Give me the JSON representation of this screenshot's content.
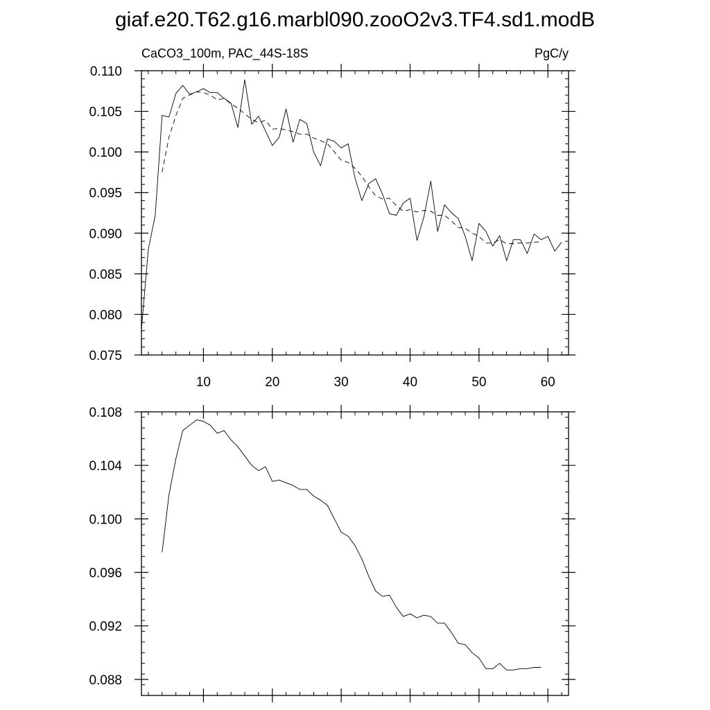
{
  "title": "giaf.e20.T62.g16.marbl090.zooO2v3.TF4.sd1.modB",
  "chart_data": [
    {
      "type": "line",
      "subtitle_left": "CaCO3_100m, PAC_44S-18S",
      "subtitle_right": "PgC/y",
      "xlim": [
        1,
        63
      ],
      "ylim": [
        0.075,
        0.11
      ],
      "x_ticks": [
        10,
        20,
        30,
        40,
        50,
        60
      ],
      "x_tick_labels": [
        "10",
        "20",
        "30",
        "40",
        "50",
        "60"
      ],
      "y_ticks": [
        0.075,
        0.08,
        0.085,
        0.09,
        0.095,
        0.1,
        0.105,
        0.11
      ],
      "y_tick_labels": [
        "0.075",
        "0.080",
        "0.085",
        "0.090",
        "0.095",
        "0.100",
        "0.105",
        "0.110"
      ],
      "series": [
        {
          "style": "solid",
          "x": [
            1,
            2,
            3,
            4,
            5,
            6,
            7,
            8,
            9,
            10,
            11,
            12,
            13,
            14,
            15,
            16,
            17,
            18,
            19,
            20,
            21,
            22,
            23,
            24,
            25,
            26,
            27,
            28,
            29,
            30,
            31,
            32,
            33,
            34,
            35,
            36,
            37,
            38,
            39,
            40,
            41,
            42,
            43,
            44,
            45,
            46,
            47,
            48,
            49,
            50,
            51,
            52,
            53,
            54,
            55,
            56,
            57,
            58,
            59,
            60,
            61,
            62
          ],
          "values": [
            0.0782,
            0.088,
            0.0922,
            0.1045,
            0.1043,
            0.1072,
            0.1082,
            0.1071,
            0.1074,
            0.1078,
            0.1073,
            0.1073,
            0.1066,
            0.106,
            0.103,
            0.1089,
            0.1034,
            0.1044,
            0.1026,
            0.1008,
            0.1018,
            0.1053,
            0.1012,
            0.104,
            0.1035,
            0.1,
            0.0983,
            0.1016,
            0.1013,
            0.1005,
            0.101,
            0.0968,
            0.094,
            0.0961,
            0.0967,
            0.0948,
            0.0924,
            0.0922,
            0.0937,
            0.0943,
            0.0891,
            0.092,
            0.0964,
            0.0902,
            0.0935,
            0.0925,
            0.0918,
            0.0896,
            0.0866,
            0.0912,
            0.0902,
            0.0884,
            0.0897,
            0.0866,
            0.0892,
            0.0892,
            0.0875,
            0.0899,
            0.0892,
            0.0896,
            0.0878,
            0.0889
          ]
        },
        {
          "style": "dashed",
          "x": [
            4,
            5,
            6,
            7,
            8,
            9,
            10,
            11,
            12,
            13,
            14,
            15,
            16,
            17,
            18,
            19,
            20,
            21,
            22,
            23,
            24,
            25,
            26,
            27,
            28,
            29,
            30,
            31,
            32,
            33,
            34,
            35,
            36,
            37,
            38,
            39,
            40,
            41,
            42,
            43,
            44,
            45,
            46,
            47,
            48,
            49,
            50,
            51,
            52,
            53,
            54,
            55,
            56,
            57,
            58,
            59
          ],
          "values": [
            0.0975,
            0.1018,
            0.1045,
            0.1066,
            0.107,
            0.1074,
            0.1073,
            0.107,
            0.1064,
            0.1066,
            0.1059,
            0.1054,
            0.1047,
            0.104,
            0.1036,
            0.1039,
            0.1028,
            0.1029,
            0.1027,
            0.1025,
            0.1022,
            0.1022,
            0.1017,
            0.1014,
            0.101,
            0.1,
            0.099,
            0.0987,
            0.098,
            0.097,
            0.0957,
            0.0946,
            0.0942,
            0.0943,
            0.0934,
            0.0927,
            0.0929,
            0.0926,
            0.0928,
            0.0927,
            0.0922,
            0.0922,
            0.0915,
            0.0907,
            0.0906,
            0.09,
            0.0896,
            0.0888,
            0.0888,
            0.0892,
            0.0887,
            0.0887,
            0.0888,
            0.0888,
            0.0889,
            0.0889
          ]
        }
      ]
    },
    {
      "type": "line",
      "xlim": [
        1,
        63
      ],
      "ylim": [
        0.0868,
        0.108
      ],
      "x_ticks": [
        10,
        20,
        30,
        40,
        50,
        60
      ],
      "y_ticks": [
        0.088,
        0.092,
        0.096,
        0.1,
        0.104,
        0.108
      ],
      "y_tick_labels": [
        "0.088",
        "0.092",
        "0.096",
        "0.100",
        "0.104",
        "0.108"
      ],
      "series": [
        {
          "style": "solid",
          "x": [
            4,
            5,
            6,
            7,
            8,
            9,
            10,
            11,
            12,
            13,
            14,
            15,
            16,
            17,
            18,
            19,
            20,
            21,
            22,
            23,
            24,
            25,
            26,
            27,
            28,
            29,
            30,
            31,
            32,
            33,
            34,
            35,
            36,
            37,
            38,
            39,
            40,
            41,
            42,
            43,
            44,
            45,
            46,
            47,
            48,
            49,
            50,
            51,
            52,
            53,
            54,
            55,
            56,
            57,
            58,
            59
          ],
          "values": [
            0.0975,
            0.1018,
            0.1045,
            0.1066,
            0.107,
            0.1074,
            0.1073,
            0.107,
            0.1064,
            0.1066,
            0.1059,
            0.1054,
            0.1047,
            0.104,
            0.1036,
            0.1039,
            0.1028,
            0.1029,
            0.1027,
            0.1025,
            0.1022,
            0.1022,
            0.1017,
            0.1014,
            0.101,
            0.1,
            0.099,
            0.0987,
            0.098,
            0.097,
            0.0957,
            0.0946,
            0.0942,
            0.0943,
            0.0934,
            0.0927,
            0.0929,
            0.0926,
            0.0928,
            0.0927,
            0.0922,
            0.0922,
            0.0915,
            0.0907,
            0.0906,
            0.09,
            0.0896,
            0.0888,
            0.0888,
            0.0892,
            0.0887,
            0.0887,
            0.0888,
            0.0888,
            0.0889,
            0.0889
          ]
        }
      ]
    }
  ]
}
